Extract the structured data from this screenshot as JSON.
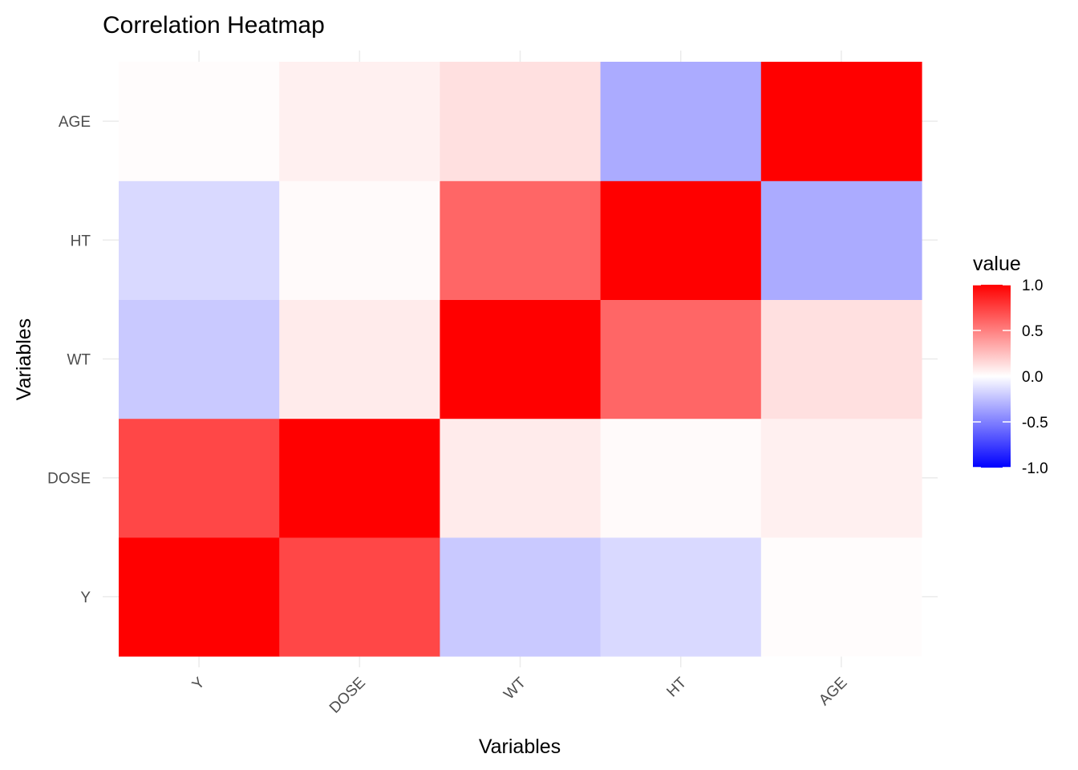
{
  "chart_data": {
    "type": "heatmap",
    "title": "Correlation Heatmap",
    "xlabel": "Variables",
    "ylabel": "Variables",
    "x_categories": [
      "Y",
      "DOSE",
      "WT",
      "HT",
      "AGE"
    ],
    "y_categories": [
      "Y",
      "DOSE",
      "WT",
      "HT",
      "AGE"
    ],
    "matrix": [
      [
        1.0,
        0.72,
        -0.21,
        -0.15,
        0.01
      ],
      [
        0.72,
        1.0,
        0.08,
        0.02,
        0.06
      ],
      [
        -0.21,
        0.08,
        1.0,
        0.6,
        0.12
      ],
      [
        -0.15,
        0.02,
        0.6,
        1.0,
        -0.33
      ],
      [
        0.01,
        0.06,
        0.12,
        -0.33,
        1.0
      ]
    ],
    "color_scale": {
      "low": "#0000ff",
      "mid": "#ffffff",
      "high": "#ff0000",
      "limits": [
        -1,
        1
      ]
    },
    "legend": {
      "title": "value",
      "position": "right",
      "ticks": [
        1.0,
        0.5,
        0.0,
        -0.5,
        -1.0
      ],
      "tick_labels": [
        "1.0",
        "0.5",
        "0.0",
        "-0.5",
        "-1.0"
      ]
    },
    "grid": true
  }
}
